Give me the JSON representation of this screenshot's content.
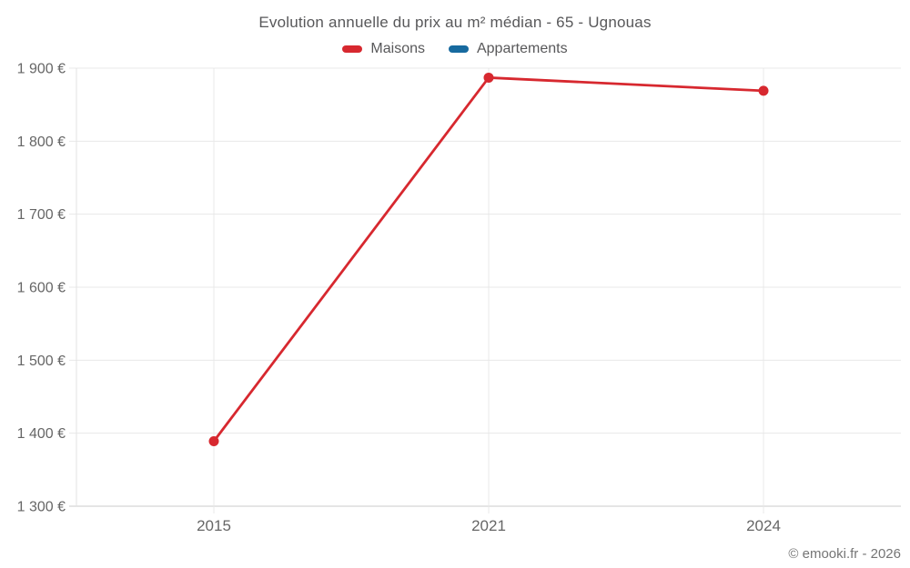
{
  "header": {
    "title": "Evolution annuelle du prix au m² médian - 65 - Ugnouas"
  },
  "footer": {
    "copyright": "© emooki.fr - 2026"
  },
  "theme": {
    "background": "#ffffff",
    "title_color": "#58585a",
    "tick_label_color": "#666666",
    "grid_color": "#e8e8e8",
    "axis_line_color": "#cbcbcb",
    "plot_border_color": "#e3e3e3",
    "footer_color": "#757575",
    "maisons_red": "#d7282f",
    "appartements_blue": "#176a9f"
  },
  "chart_data": {
    "type": "line",
    "title": "Evolution annuelle du prix au m² médian - 65 - Ugnouas",
    "categories": [
      "2015",
      "2021",
      "2024"
    ],
    "series": [
      {
        "name": "Maisons",
        "color": "#d7282f",
        "values": [
          1389,
          1887,
          1869
        ]
      },
      {
        "name": "Appartements",
        "color": "#176a9f",
        "values": []
      }
    ],
    "ylim": [
      1300,
      1900
    ],
    "ytick_step": 100,
    "ytick_labels": [
      "1 300 €",
      "1 400 €",
      "1 500 €",
      "1 600 €",
      "1 700 €",
      "1 800 €",
      "1 900 €"
    ],
    "xlabel": "",
    "ylabel": "",
    "currency": "€",
    "grid": "on",
    "legend_position": "top",
    "marker": "circle"
  }
}
